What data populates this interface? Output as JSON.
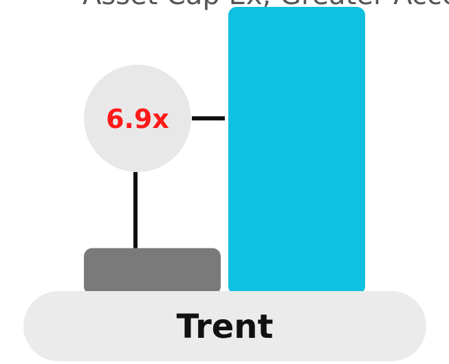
{
  "chart_data": {
    "type": "bar",
    "categories": [
      "Trent"
    ],
    "series": [
      {
        "values": [
          1.0
        ]
      },
      {
        "values": [
          6.9
        ]
      }
    ],
    "annotation": "6.9x",
    "top_caption": "Asset Cap Ex, Greater Access",
    "colors": {
      "before": "#7a7a7a",
      "after": "#0fc0e0",
      "pill": "#ebebeb",
      "circle": "#e8e8e8",
      "multiplier": "#ff1a1a",
      "connector": "#111111"
    }
  }
}
